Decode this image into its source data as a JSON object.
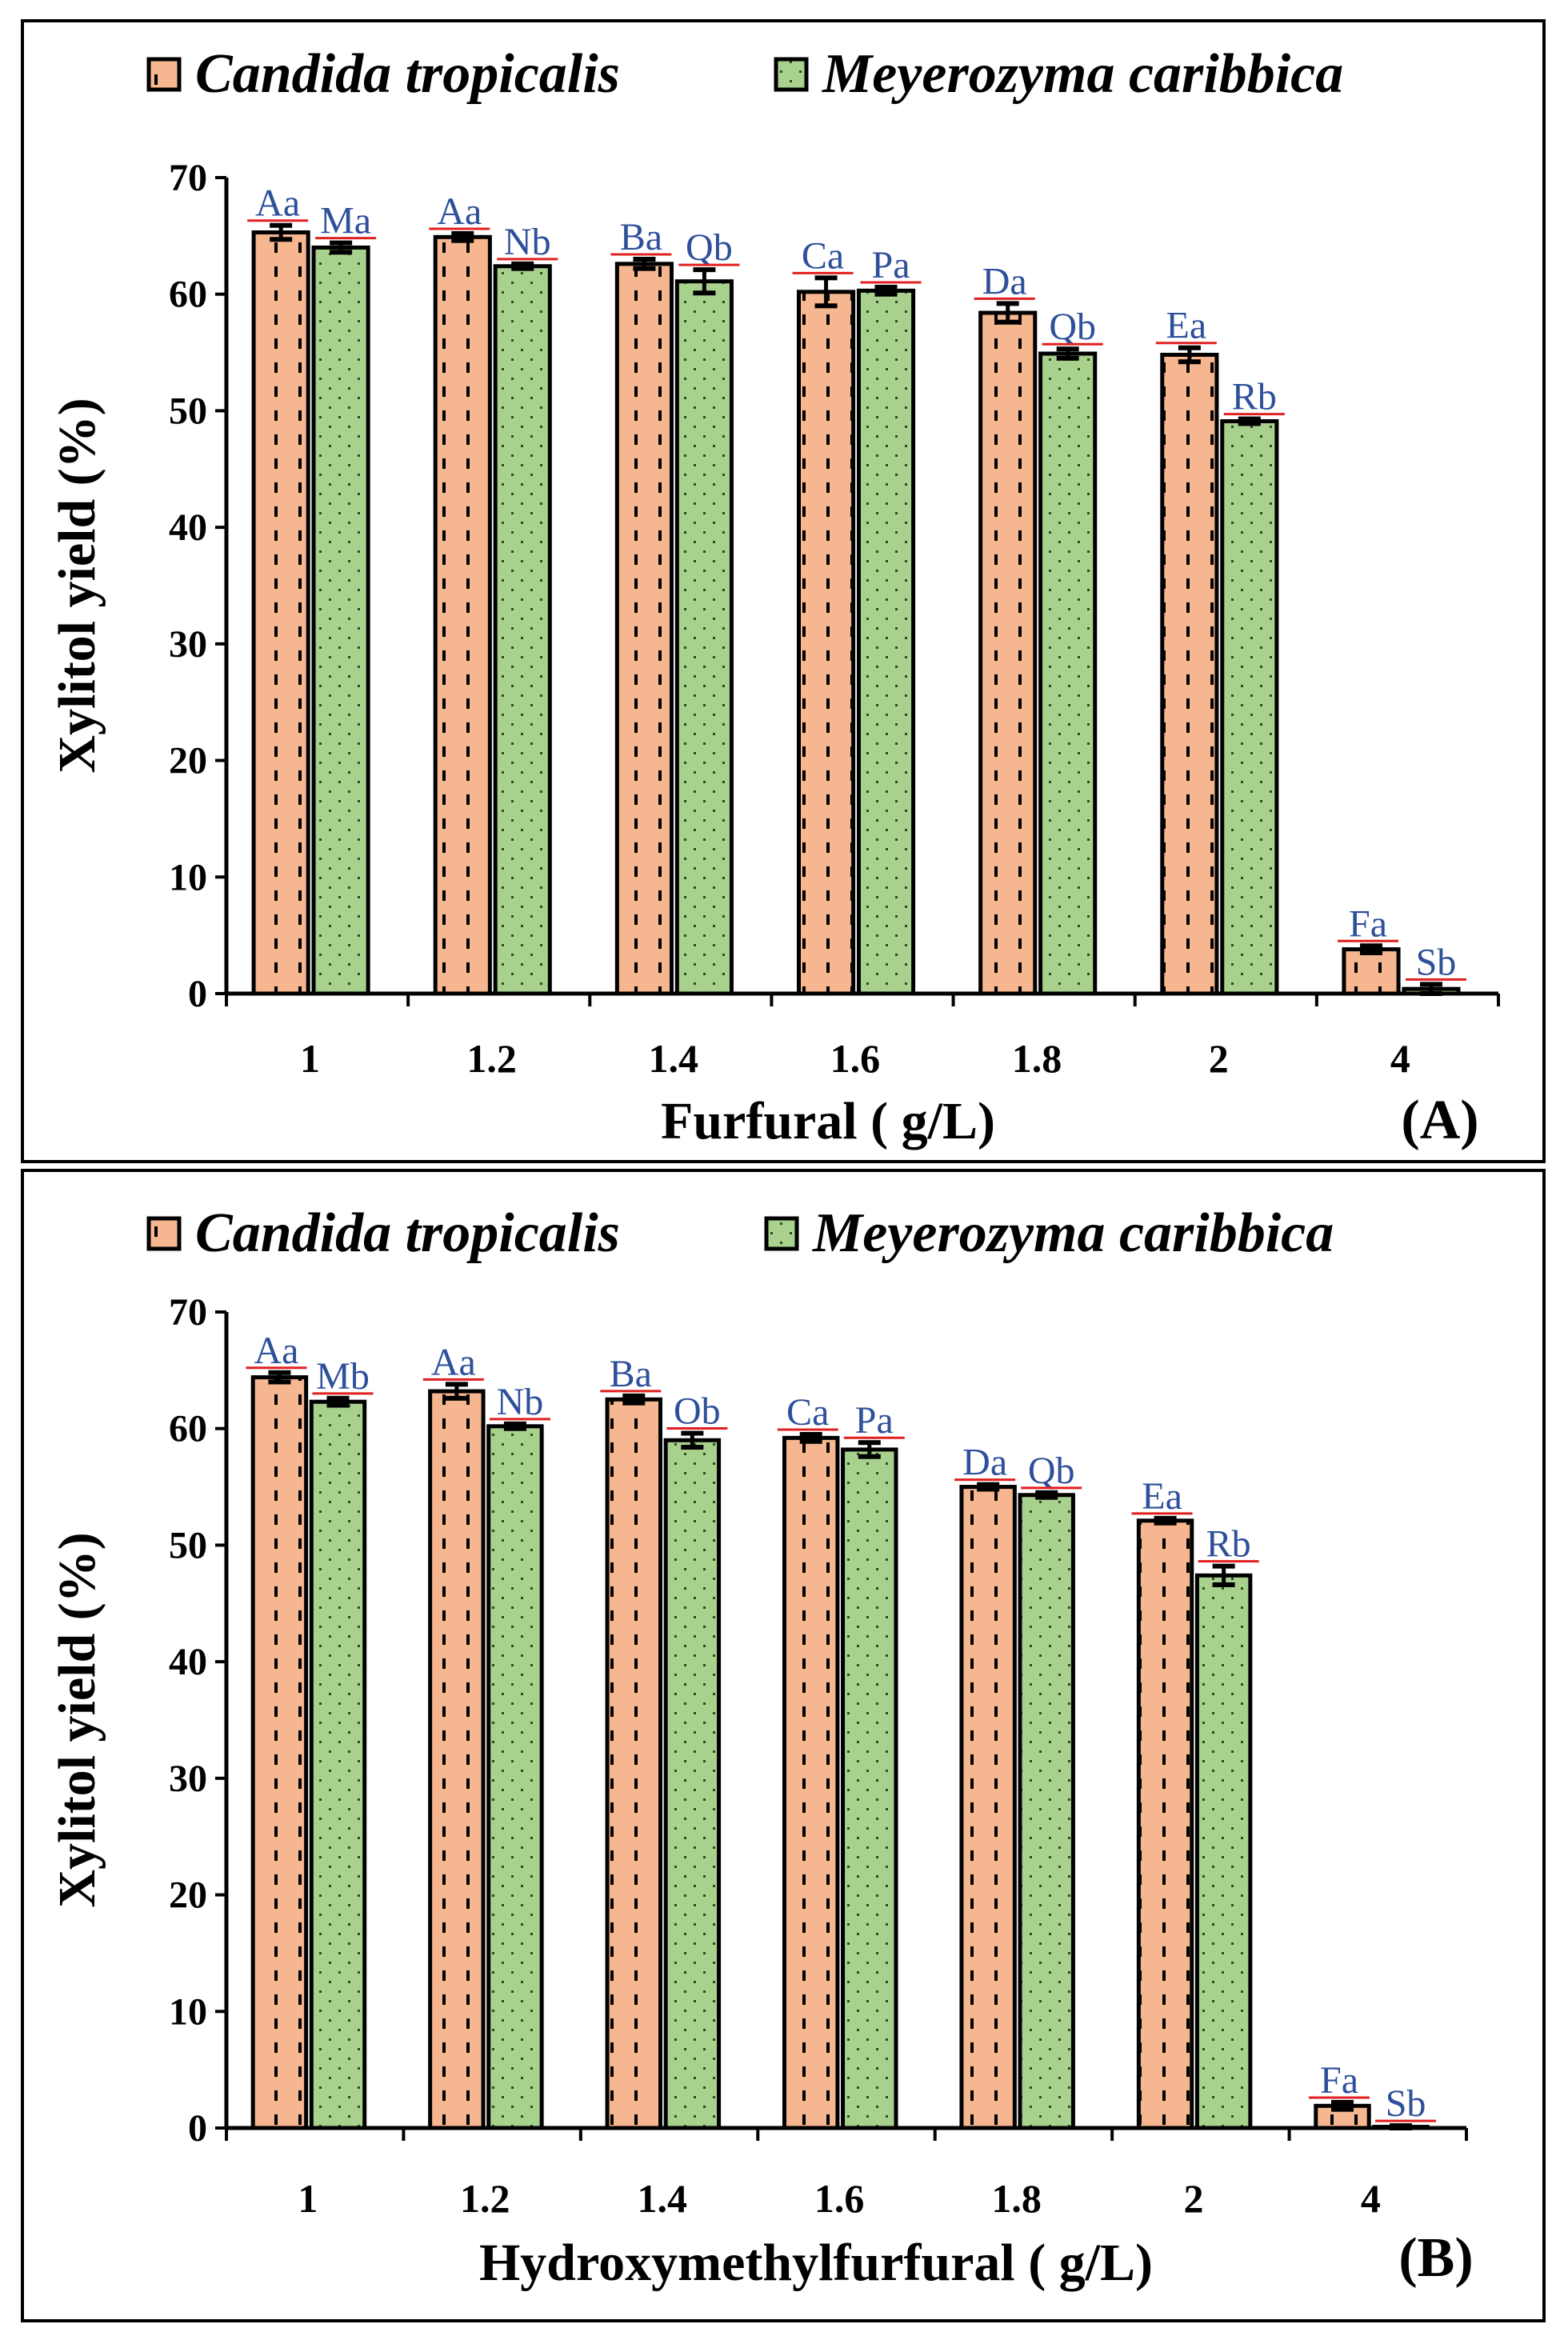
{
  "chart_data": [
    {
      "type": "bar",
      "panel_label": "(A)",
      "xlabel": "Furfural ( g/L)",
      "ylabel": "Xylitol yield (%)",
      "ylim": [
        0,
        70
      ],
      "yticks": [
        0,
        10,
        20,
        30,
        40,
        50,
        60,
        70
      ],
      "categories": [
        "1",
        "1.2",
        "1.4",
        "1.6",
        "1.8",
        "2",
        "4"
      ],
      "legend_position": "top",
      "series": [
        {
          "name": "Candida tropicalis",
          "values": [
            65.3,
            64.9,
            62.6,
            60.2,
            58.4,
            54.8,
            3.8
          ],
          "errors": [
            0.6,
            0.3,
            0.4,
            1.2,
            0.8,
            0.6,
            0.3
          ],
          "labels": [
            "Aa",
            "Aa",
            "Ba",
            "Ca",
            "Da",
            "Ea",
            "Fa"
          ]
        },
        {
          "name": "Meyerozyma caribbica",
          "values": [
            64.0,
            62.4,
            61.1,
            60.3,
            54.9,
            49.1,
            0.4
          ],
          "errors": [
            0.4,
            0.2,
            1.0,
            0.3,
            0.4,
            0.2,
            0.4
          ],
          "labels": [
            "Ma",
            "Nb",
            "Qb",
            "Pa",
            "Qb",
            "Rb",
            "Sb"
          ]
        }
      ]
    },
    {
      "type": "bar",
      "panel_label": "(B)",
      "xlabel": "Hydroxymethylfurfural ( g/L)",
      "ylabel": "Xylitol yield (%)",
      "ylim": [
        0,
        70
      ],
      "yticks": [
        0,
        10,
        20,
        30,
        40,
        50,
        60,
        70
      ],
      "categories": [
        "1",
        "1.2",
        "1.4",
        "1.6",
        "1.8",
        "2",
        "4"
      ],
      "legend_position": "top",
      "series": [
        {
          "name": "Candida tropicalis",
          "values": [
            64.4,
            63.2,
            62.5,
            59.2,
            55.0,
            52.1,
            1.9
          ],
          "errors": [
            0.4,
            0.6,
            0.3,
            0.3,
            0.2,
            0.2,
            0.3
          ],
          "labels": [
            "Aa",
            "Aa",
            "Ba",
            "Ca",
            "Da",
            "Ea",
            "Fa"
          ]
        },
        {
          "name": "Meyerozyma caribbica",
          "values": [
            62.3,
            60.2,
            59.0,
            58.2,
            54.3,
            47.4,
            0.1
          ],
          "errors": [
            0.3,
            0.2,
            0.6,
            0.6,
            0.2,
            0.8,
            0.1
          ],
          "labels": [
            "Mb",
            "Nb",
            "Ob",
            "Pa",
            "Qb",
            "Rb",
            "Sb"
          ]
        }
      ]
    }
  ],
  "colors": {
    "candida_fill": "#f6b790",
    "meyerozyma_fill": "#a9d18e",
    "significance_text": "#2e4f9a",
    "significance_underline": "#e02020"
  }
}
